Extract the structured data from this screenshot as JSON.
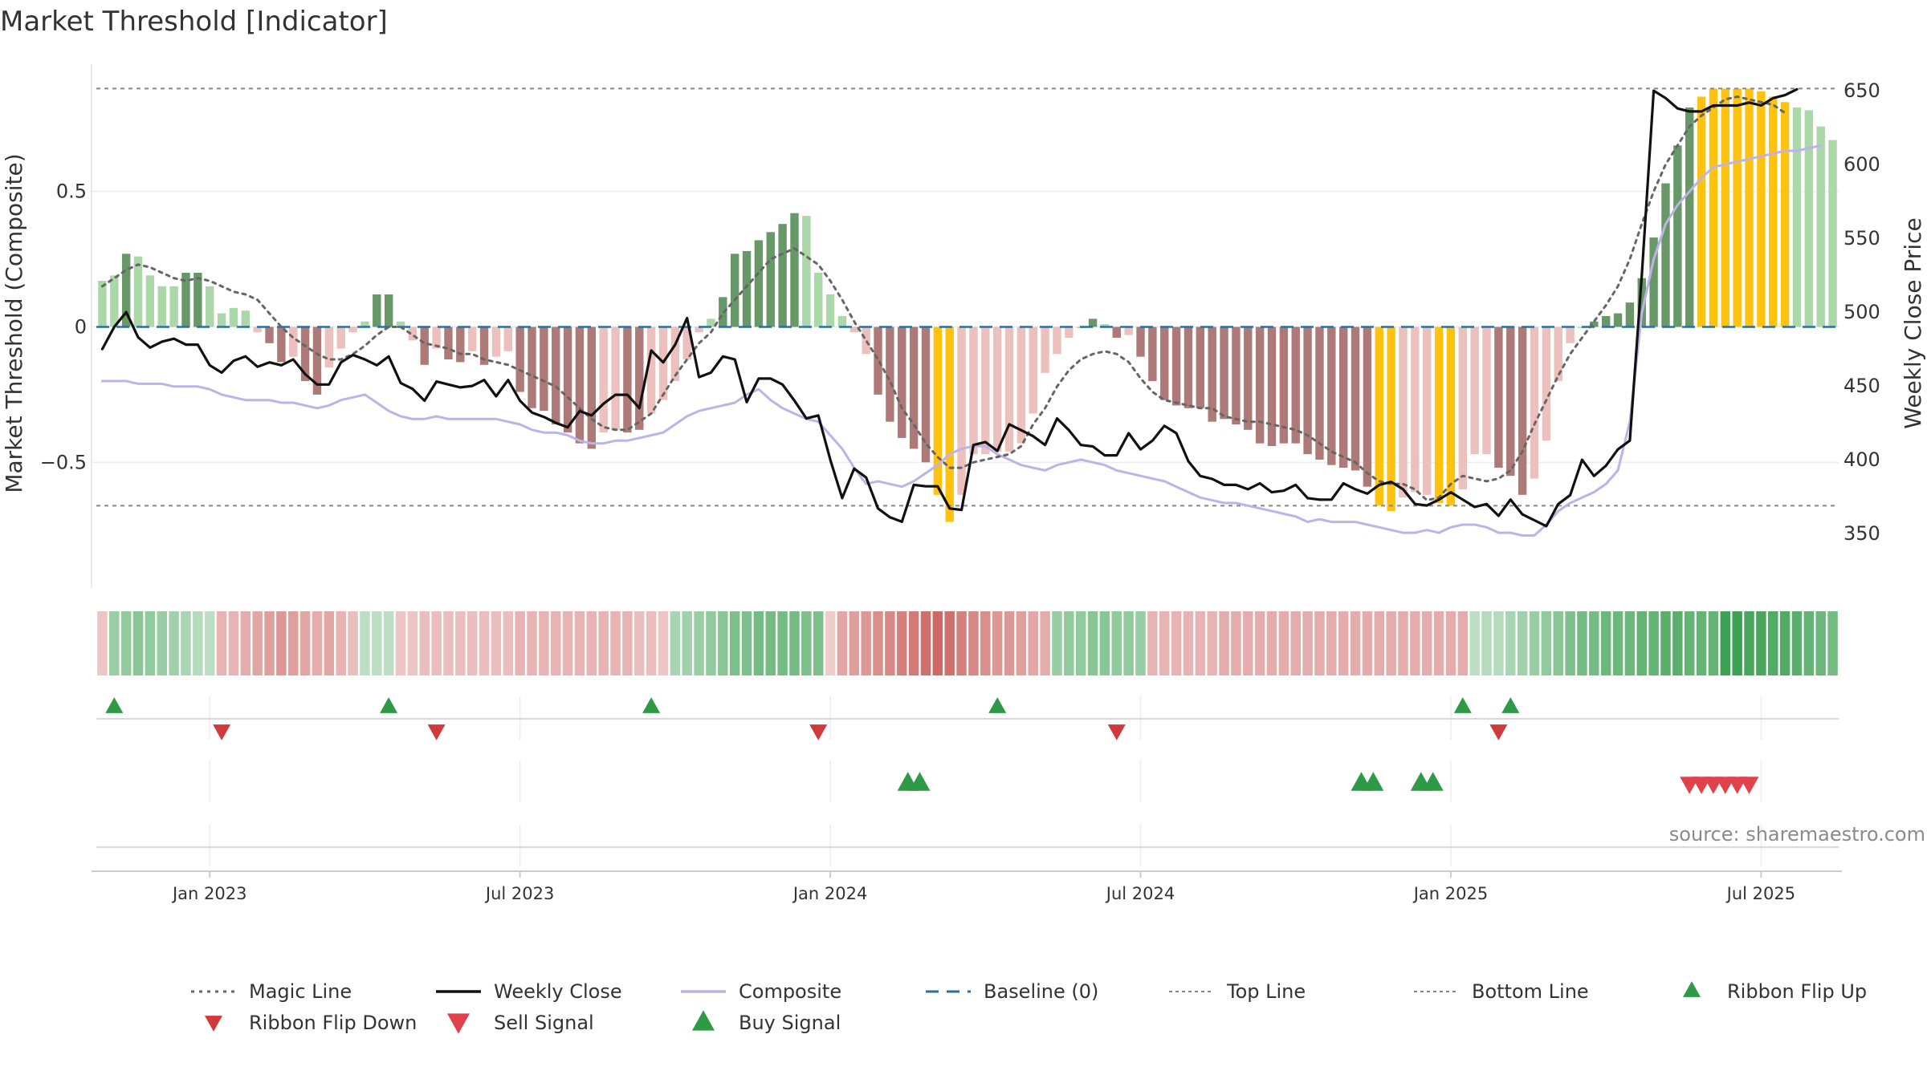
{
  "chart_data": {
    "type": "bar",
    "title": "Market Threshold [Indicator]",
    "ylabel_left": "Market Threshold (Composite)",
    "ylabel_right": "Weekly Close Price",
    "source": "source: sharemaestro.com",
    "left_ylim": [
      -0.97,
      0.97
    ],
    "right_ylim": [
      312,
      668
    ],
    "left_ticks": [
      {
        "v": 0.5,
        "label": "0.5"
      },
      {
        "v": 0,
        "label": "0"
      },
      {
        "v": -0.5,
        "label": "−0.5"
      }
    ],
    "right_ticks": [
      {
        "v": 650,
        "label": "650"
      },
      {
        "v": 600,
        "label": "600"
      },
      {
        "v": 550,
        "label": "550"
      },
      {
        "v": 500,
        "label": "500"
      },
      {
        "v": 450,
        "label": "450"
      },
      {
        "v": 400,
        "label": "400"
      },
      {
        "v": 350,
        "label": "350"
      }
    ],
    "x_ticks": [
      {
        "week": 9,
        "label": "Jan 2023"
      },
      {
        "week": 35,
        "label": "Jul 2023"
      },
      {
        "week": 61,
        "label": "Jan 2024"
      },
      {
        "week": 87,
        "label": "Jul 2024"
      },
      {
        "week": 113,
        "label": "Jan 2025"
      },
      {
        "week": 139,
        "label": "Jul 2025"
      }
    ],
    "top_line": 0.88,
    "bottom_line": -0.66,
    "colors": {
      "strong_pos": "#689868",
      "weak_pos": "#acd7a8",
      "strong_neg": "#ad7a77",
      "weak_neg": "#ecc0bc",
      "extreme": "#ffc20e",
      "close": "#111111",
      "magic": "#666666",
      "composite": "#bcb4e6",
      "baseline": "#2c6e9c",
      "guide": "#888888",
      "buy": "#2e9a45",
      "sell": "#d13a3a"
    },
    "composite_bars": [
      0.17,
      0.19,
      0.27,
      0.26,
      0.19,
      0.15,
      0.15,
      0.2,
      0.2,
      0.15,
      0.05,
      0.07,
      0.06,
      -0.02,
      -0.06,
      -0.13,
      -0.11,
      -0.2,
      -0.25,
      -0.15,
      -0.08,
      -0.02,
      0.02,
      0.12,
      0.12,
      0.02,
      -0.05,
      -0.14,
      -0.08,
      -0.12,
      -0.13,
      -0.09,
      -0.14,
      -0.11,
      -0.09,
      -0.24,
      -0.3,
      -0.31,
      -0.36,
      -0.39,
      -0.43,
      -0.45,
      -0.39,
      -0.38,
      -0.39,
      -0.38,
      -0.32,
      -0.27,
      -0.2,
      -0.12,
      -0.02,
      0.03,
      0.11,
      0.27,
      0.28,
      0.32,
      0.35,
      0.38,
      0.42,
      0.41,
      0.2,
      0.12,
      0.04,
      -0.02,
      -0.1,
      -0.25,
      -0.35,
      -0.41,
      -0.45,
      -0.5,
      -0.62,
      -0.72,
      -0.62,
      -0.47,
      -0.47,
      -0.46,
      -0.46,
      -0.43,
      -0.32,
      -0.17,
      -0.1,
      -0.04,
      0,
      0.03,
      0.01,
      -0.04,
      -0.03,
      -0.11,
      -0.2,
      -0.27,
      -0.29,
      -0.3,
      -0.3,
      -0.35,
      -0.34,
      -0.36,
      -0.38,
      -0.43,
      -0.44,
      -0.43,
      -0.43,
      -0.47,
      -0.49,
      -0.51,
      -0.52,
      -0.53,
      -0.59,
      -0.66,
      -0.68,
      -0.63,
      -0.61,
      -0.62,
      -0.65,
      -0.66,
      -0.6,
      -0.47,
      -0.47,
      -0.52,
      -0.55,
      -0.62,
      -0.56,
      -0.42,
      -0.2,
      -0.06,
      0,
      0.02,
      0.04,
      0.05,
      0.09,
      0.18,
      0.33,
      0.53,
      0.67,
      0.81,
      0.85,
      0.88,
      0.88,
      0.88,
      0.88,
      0.87,
      0.85,
      0.83,
      0.81,
      0.8,
      0.74,
      0.69
    ],
    "bar_styles": [
      "w",
      "w",
      "s",
      "w",
      "w",
      "w",
      "w",
      "s",
      "s",
      "w",
      "w",
      "w",
      "w",
      "w",
      "s",
      "s",
      "w",
      "s",
      "s",
      "w",
      "w",
      "w",
      "w",
      "s",
      "s",
      "w",
      "w",
      "s",
      "w",
      "s",
      "s",
      "w",
      "s",
      "w",
      "w",
      "s",
      "s",
      "s",
      "s",
      "s",
      "s",
      "s",
      "w",
      "w",
      "s",
      "s",
      "w",
      "w",
      "w",
      "w",
      "w",
      "w",
      "s",
      "s",
      "s",
      "s",
      "s",
      "s",
      "s",
      "w",
      "w",
      "w",
      "w",
      "w",
      "w",
      "s",
      "s",
      "s",
      "s",
      "s",
      "x",
      "x",
      "w",
      "w",
      "w",
      "w",
      "w",
      "w",
      "w",
      "w",
      "w",
      "w",
      "w",
      "s",
      "w",
      "s",
      "w",
      "s",
      "s",
      "s",
      "s",
      "s",
      "s",
      "s",
      "s",
      "s",
      "s",
      "s",
      "s",
      "s",
      "s",
      "s",
      "s",
      "s",
      "s",
      "s",
      "s",
      "x",
      "x",
      "w",
      "w",
      "w",
      "x",
      "x",
      "w",
      "w",
      "w",
      "s",
      "s",
      "s",
      "w",
      "w",
      "w",
      "w",
      "w",
      "s",
      "s",
      "s",
      "s",
      "s",
      "s",
      "s",
      "s",
      "s",
      "x",
      "x",
      "x",
      "x",
      "x",
      "x",
      "x",
      "x",
      "w",
      "w",
      "w",
      "w",
      "w"
    ],
    "weekly_close": [
      475,
      490,
      500,
      483,
      476,
      480,
      482,
      478,
      478,
      464,
      459,
      467,
      470,
      463,
      466,
      464,
      468,
      458,
      451,
      451,
      466,
      471,
      468,
      464,
      470,
      452,
      448,
      440,
      453,
      451,
      449,
      450,
      454,
      443,
      454,
      440,
      432,
      429,
      425,
      422,
      433,
      430,
      438,
      444,
      444,
      435,
      474,
      466,
      478,
      496,
      456,
      459,
      470,
      468,
      439,
      455,
      455,
      451,
      440,
      428,
      430,
      400,
      374,
      394,
      388,
      367,
      361,
      358,
      383,
      382,
      382,
      367,
      366,
      410,
      412,
      406,
      424,
      420,
      416,
      410,
      428,
      420,
      410,
      409,
      403,
      403,
      418,
      407,
      413,
      423,
      418,
      399,
      389,
      387,
      383,
      383,
      380,
      384,
      378,
      379,
      383,
      374,
      373,
      373,
      384,
      380,
      377,
      383,
      385,
      380,
      370,
      369,
      373,
      378,
      373,
      368,
      370,
      362,
      373,
      363,
      359,
      355,
      370,
      376,
      400,
      389,
      396,
      407,
      413,
      525,
      650,
      645,
      638,
      636,
      636,
      640,
      640,
      640,
      642,
      640,
      645,
      647,
      651
    ],
    "magic_line": [
      0.15,
      0.18,
      0.21,
      0.23,
      0.22,
      0.2,
      0.18,
      0.17,
      0.18,
      0.17,
      0.15,
      0.13,
      0.12,
      0.1,
      0.05,
      0,
      -0.04,
      -0.07,
      -0.1,
      -0.12,
      -0.12,
      -0.1,
      -0.07,
      -0.03,
      0,
      0,
      -0.03,
      -0.06,
      -0.07,
      -0.08,
      -0.1,
      -0.1,
      -0.12,
      -0.13,
      -0.14,
      -0.16,
      -0.18,
      -0.2,
      -0.22,
      -0.26,
      -0.3,
      -0.34,
      -0.37,
      -0.38,
      -0.38,
      -0.35,
      -0.32,
      -0.25,
      -0.18,
      -0.12,
      -0.06,
      -0.02,
      0.05,
      0.1,
      0.15,
      0.2,
      0.25,
      0.27,
      0.29,
      0.26,
      0.23,
      0.17,
      0.1,
      0.02,
      -0.05,
      -0.12,
      -0.2,
      -0.3,
      -0.36,
      -0.43,
      -0.48,
      -0.52,
      -0.52,
      -0.5,
      -0.49,
      -0.48,
      -0.47,
      -0.44,
      -0.36,
      -0.3,
      -0.22,
      -0.16,
      -0.12,
      -0.1,
      -0.09,
      -0.1,
      -0.13,
      -0.19,
      -0.24,
      -0.27,
      -0.28,
      -0.29,
      -0.3,
      -0.3,
      -0.33,
      -0.34,
      -0.35,
      -0.35,
      -0.36,
      -0.37,
      -0.38,
      -0.4,
      -0.43,
      -0.46,
      -0.48,
      -0.5,
      -0.54,
      -0.57,
      -0.58,
      -0.58,
      -0.6,
      -0.64,
      -0.63,
      -0.58,
      -0.55,
      -0.56,
      -0.57,
      -0.56,
      -0.53,
      -0.46,
      -0.36,
      -0.27,
      -0.18,
      -0.1,
      -0.04,
      0.02,
      0.08,
      0.15,
      0.25,
      0.38,
      0.5,
      0.6,
      0.67,
      0.74,
      0.78,
      0.81,
      0.84,
      0.85,
      0.84,
      0.83,
      0.82,
      0.79
    ],
    "composite_line": [
      -0.2,
      -0.2,
      -0.2,
      -0.21,
      -0.21,
      -0.21,
      -0.22,
      -0.22,
      -0.22,
      -0.23,
      -0.25,
      -0.26,
      -0.27,
      -0.27,
      -0.27,
      -0.28,
      -0.28,
      -0.29,
      -0.3,
      -0.29,
      -0.27,
      -0.26,
      -0.25,
      -0.28,
      -0.31,
      -0.33,
      -0.34,
      -0.34,
      -0.33,
      -0.34,
      -0.34,
      -0.34,
      -0.34,
      -0.34,
      -0.35,
      -0.36,
      -0.38,
      -0.39,
      -0.39,
      -0.4,
      -0.42,
      -0.43,
      -0.43,
      -0.42,
      -0.42,
      -0.41,
      -0.4,
      -0.39,
      -0.36,
      -0.33,
      -0.31,
      -0.3,
      -0.29,
      -0.28,
      -0.25,
      -0.23,
      -0.27,
      -0.3,
      -0.32,
      -0.34,
      -0.35,
      -0.4,
      -0.45,
      -0.52,
      -0.58,
      -0.57,
      -0.58,
      -0.59,
      -0.57,
      -0.54,
      -0.51,
      -0.47,
      -0.45,
      -0.44,
      -0.44,
      -0.47,
      -0.49,
      -0.51,
      -0.52,
      -0.53,
      -0.51,
      -0.5,
      -0.49,
      -0.5,
      -0.51,
      -0.53,
      -0.54,
      -0.55,
      -0.56,
      -0.57,
      -0.59,
      -0.61,
      -0.63,
      -0.64,
      -0.65,
      -0.65,
      -0.66,
      -0.67,
      -0.68,
      -0.69,
      -0.7,
      -0.72,
      -0.71,
      -0.72,
      -0.72,
      -0.72,
      -0.73,
      -0.74,
      -0.75,
      -0.76,
      -0.76,
      -0.75,
      -0.76,
      -0.74,
      -0.73,
      -0.73,
      -0.74,
      -0.76,
      -0.76,
      -0.77,
      -0.77,
      -0.73,
      -0.68,
      -0.65,
      -0.63,
      -0.61,
      -0.58,
      -0.53,
      -0.35,
      0.05,
      0.25,
      0.38,
      0.45,
      0.5,
      0.55,
      0.59,
      0.6,
      0.61,
      0.62,
      0.63,
      0.64,
      0.65,
      0.65,
      0.66,
      0.67
    ],
    "ribbon_levels": [
      -0.2,
      0.4,
      0.45,
      0.5,
      0.45,
      0.4,
      0.35,
      0.3,
      0.25,
      0.2,
      -0.3,
      -0.3,
      -0.35,
      -0.4,
      -0.45,
      -0.5,
      -0.45,
      -0.4,
      -0.35,
      -0.4,
      -0.3,
      -0.25,
      0.2,
      0.2,
      0.2,
      -0.2,
      -0.2,
      -0.25,
      -0.25,
      -0.25,
      -0.25,
      -0.25,
      -0.25,
      -0.25,
      -0.25,
      -0.3,
      -0.3,
      -0.3,
      -0.3,
      -0.3,
      -0.3,
      -0.3,
      -0.3,
      -0.3,
      -0.3,
      -0.25,
      -0.25,
      -0.2,
      0.3,
      0.35,
      0.4,
      0.45,
      0.5,
      0.55,
      0.55,
      0.6,
      0.6,
      0.6,
      0.6,
      0.55,
      0.55,
      -0.15,
      -0.4,
      -0.45,
      -0.5,
      -0.55,
      -0.6,
      -0.65,
      -0.7,
      -0.75,
      -0.8,
      -0.75,
      -0.65,
      -0.6,
      -0.55,
      -0.5,
      -0.5,
      -0.45,
      -0.4,
      -0.35,
      0.4,
      0.45,
      0.45,
      0.5,
      0.5,
      0.45,
      0.45,
      0.4,
      -0.3,
      -0.3,
      -0.3,
      -0.3,
      -0.3,
      -0.3,
      -0.35,
      -0.35,
      -0.35,
      -0.35,
      -0.35,
      -0.35,
      -0.35,
      -0.35,
      -0.35,
      -0.35,
      -0.35,
      -0.35,
      -0.35,
      -0.35,
      -0.35,
      -0.35,
      -0.35,
      -0.35,
      -0.35,
      -0.35,
      -0.35,
      0.2,
      0.25,
      0.25,
      0.3,
      0.35,
      0.4,
      0.45,
      0.5,
      0.55,
      0.6,
      0.6,
      0.65,
      0.65,
      0.65,
      0.7,
      0.7,
      0.75,
      0.75,
      0.7,
      0.7,
      0.7,
      0.9,
      0.9,
      0.85,
      0.85,
      0.8,
      0.8,
      0.75,
      0.7,
      0.65,
      0.6
    ],
    "ribbon_flip_up_weeks": [
      1,
      24,
      46,
      75,
      114,
      118
    ],
    "ribbon_flip_down_weeks": [
      10,
      28,
      60,
      85,
      117
    ],
    "buy_signal_weeks": [
      67.5,
      68.5,
      105.5,
      106.5,
      110.5,
      111.5
    ],
    "sell_signal_weeks": [
      133,
      134,
      135,
      136,
      137,
      138
    ],
    "legend": [
      {
        "label": "Magic Line",
        "kind": "dotted",
        "color": "#666666"
      },
      {
        "label": "Weekly Close",
        "kind": "solid",
        "color": "#111111"
      },
      {
        "label": "Composite",
        "kind": "solid",
        "color": "#bcb4e6"
      },
      {
        "label": "Baseline (0)",
        "kind": "dashed",
        "color": "#2c6e9c"
      },
      {
        "label": "Top Line",
        "kind": "dotted-thin",
        "color": "#888888"
      },
      {
        "label": "Bottom Line",
        "kind": "dotted-thin",
        "color": "#888888"
      },
      {
        "label": "Ribbon Flip Up",
        "kind": "tri-up",
        "color": "#2e9a45"
      },
      {
        "label": "Ribbon Flip Down",
        "kind": "tri-down",
        "color": "#d13a3a"
      },
      {
        "label": "Sell Signal",
        "kind": "tri-down-big",
        "color": "#e0414a"
      },
      {
        "label": "Buy Signal",
        "kind": "tri-up-big",
        "color": "#2e9a45"
      }
    ]
  }
}
